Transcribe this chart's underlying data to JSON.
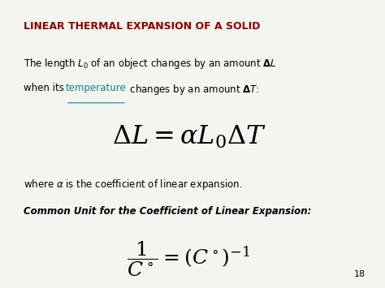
{
  "title": "LINEAR THERMAL EXPANSION OF A SOLID",
  "title_color": "#8B0000",
  "background_color": "#f5f5f0",
  "page_number": "18",
  "main_formula": "$\\Delta L = \\alpha L_0 \\Delta T$",
  "where_line": "where $\\alpha$ is the coefficient of linear expansion.",
  "common_unit_label": "Common Unit for the Coefficient of Linear Expansion:",
  "unit_formula": "$\\dfrac{1}{C^\\circ} = \\left(C^\\circ\\right)^{-1}$",
  "link_color": "#008B8B",
  "text_color": "#000000"
}
